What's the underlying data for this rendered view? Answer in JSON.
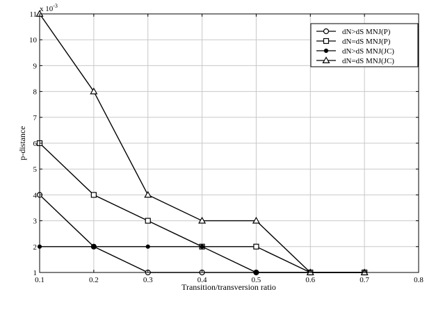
{
  "chart_data": {
    "type": "line",
    "xlabel": "Transition/transversion ratio",
    "ylabel": "p-distance",
    "y_multiplier_label": "x 10",
    "y_multiplier_exponent": "-3",
    "xlim": [
      0.1,
      0.8
    ],
    "ylim": [
      1,
      11
    ],
    "x_ticks": [
      "0.1",
      "0.2",
      "0.3",
      "0.4",
      "0.5",
      "0.6",
      "0.7",
      "0.8"
    ],
    "y_ticks": [
      "1",
      "2",
      "3",
      "4",
      "5",
      "6",
      "7",
      "8",
      "9",
      "10",
      "11"
    ],
    "grid": true,
    "legend_position": "top-right",
    "series": [
      {
        "name": "dN>dS MNJ(P)",
        "marker": "circle",
        "x": [
          0.1,
          0.2,
          0.3,
          0.4,
          0.5,
          0.6,
          0.7
        ],
        "y": [
          4,
          2,
          1,
          1,
          1,
          1,
          1
        ]
      },
      {
        "name": "dN=dS MNJ(P)",
        "marker": "square",
        "x": [
          0.1,
          0.2,
          0.3,
          0.4,
          0.5,
          0.6,
          0.7
        ],
        "y": [
          6,
          4,
          3,
          2,
          2,
          1,
          1
        ]
      },
      {
        "name": "dN>dS MNJ(JC)",
        "marker": "dot",
        "x": [
          0.1,
          0.2,
          0.3,
          0.4,
          0.5,
          0.6,
          0.7
        ],
        "y": [
          2,
          2,
          2,
          2,
          1,
          1,
          1
        ]
      },
      {
        "name": "dN=dS MNJ(JC)",
        "marker": "triangle",
        "x": [
          0.1,
          0.2,
          0.3,
          0.4,
          0.5,
          0.6,
          0.7
        ],
        "y": [
          11,
          8,
          4,
          3,
          3,
          1,
          1
        ]
      }
    ]
  }
}
